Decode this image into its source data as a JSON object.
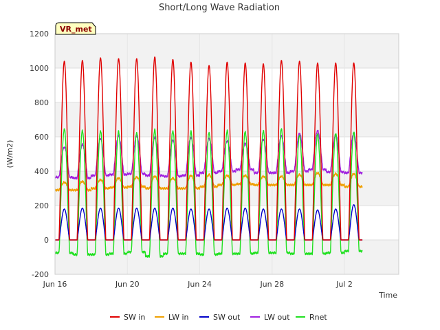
{
  "chart_data": {
    "type": "line",
    "title": "Short/Long Wave Radiation",
    "xlabel": "Time",
    "ylabel": "(W/m2)",
    "station_badge": "VR_met",
    "xlim": [
      0,
      19.0
    ],
    "ylim": [
      -200,
      1200
    ],
    "y_ticks": [
      -200,
      0,
      200,
      400,
      600,
      800,
      1000,
      1200
    ],
    "x_ticks": [
      {
        "day": 0,
        "label": "Jun 16"
      },
      {
        "day": 4,
        "label": "Jun 20"
      },
      {
        "day": 8,
        "label": "Jun 24"
      },
      {
        "day": 12,
        "label": "Jun 28"
      },
      {
        "day": 16,
        "label": "Jul 2"
      }
    ],
    "grid": true,
    "legend_position": "bottom",
    "days": 17,
    "series": [
      {
        "name": "SW in",
        "color": "#e00000",
        "peaks": [
          1040,
          1045,
          1060,
          1055,
          1055,
          1065,
          1050,
          1035,
          1015,
          1035,
          1030,
          1025,
          1045,
          1040,
          1030,
          1030,
          1030
        ],
        "night": [
          0,
          0,
          0,
          0,
          0,
          0,
          0,
          0,
          0,
          0,
          0,
          0,
          0,
          0,
          0,
          0,
          0
        ]
      },
      {
        "name": "LW in",
        "color": "#f0a000",
        "peaks": [
          335,
          340,
          350,
          360,
          365,
          370,
          360,
          375,
          380,
          375,
          375,
          370,
          370,
          380,
          390,
          385,
          385
        ],
        "night": [
          290,
          290,
          300,
          305,
          310,
          300,
          300,
          300,
          310,
          320,
          325,
          320,
          320,
          320,
          320,
          320,
          310
        ]
      },
      {
        "name": "SW out",
        "color": "#0000c8",
        "peaks": [
          180,
          185,
          185,
          185,
          185,
          185,
          185,
          180,
          180,
          185,
          185,
          180,
          180,
          180,
          175,
          180,
          205
        ],
        "night": [
          0,
          0,
          0,
          0,
          0,
          0,
          0,
          0,
          0,
          0,
          0,
          0,
          0,
          0,
          0,
          0,
          0
        ]
      },
      {
        "name": "LW out",
        "color": "#a020e0",
        "peaks": [
          540,
          555,
          590,
          605,
          605,
          595,
          580,
          595,
          590,
          575,
          560,
          585,
          605,
          620,
          635,
          610,
          620
        ],
        "night": [
          365,
          360,
          375,
          380,
          385,
          375,
          370,
          375,
          390,
          400,
          410,
          390,
          390,
          400,
          410,
          395,
          390
        ]
      },
      {
        "name": "Rnet",
        "color": "#20e020",
        "peaks": [
          645,
          635,
          635,
          630,
          625,
          640,
          635,
          630,
          625,
          635,
          630,
          635,
          645,
          610,
          615,
          620,
          625
        ],
        "night": [
          -75,
          -85,
          -85,
          -80,
          -70,
          -95,
          -80,
          -80,
          -85,
          -80,
          -80,
          -75,
          -75,
          -80,
          -80,
          -75,
          -65
        ]
      }
    ]
  }
}
